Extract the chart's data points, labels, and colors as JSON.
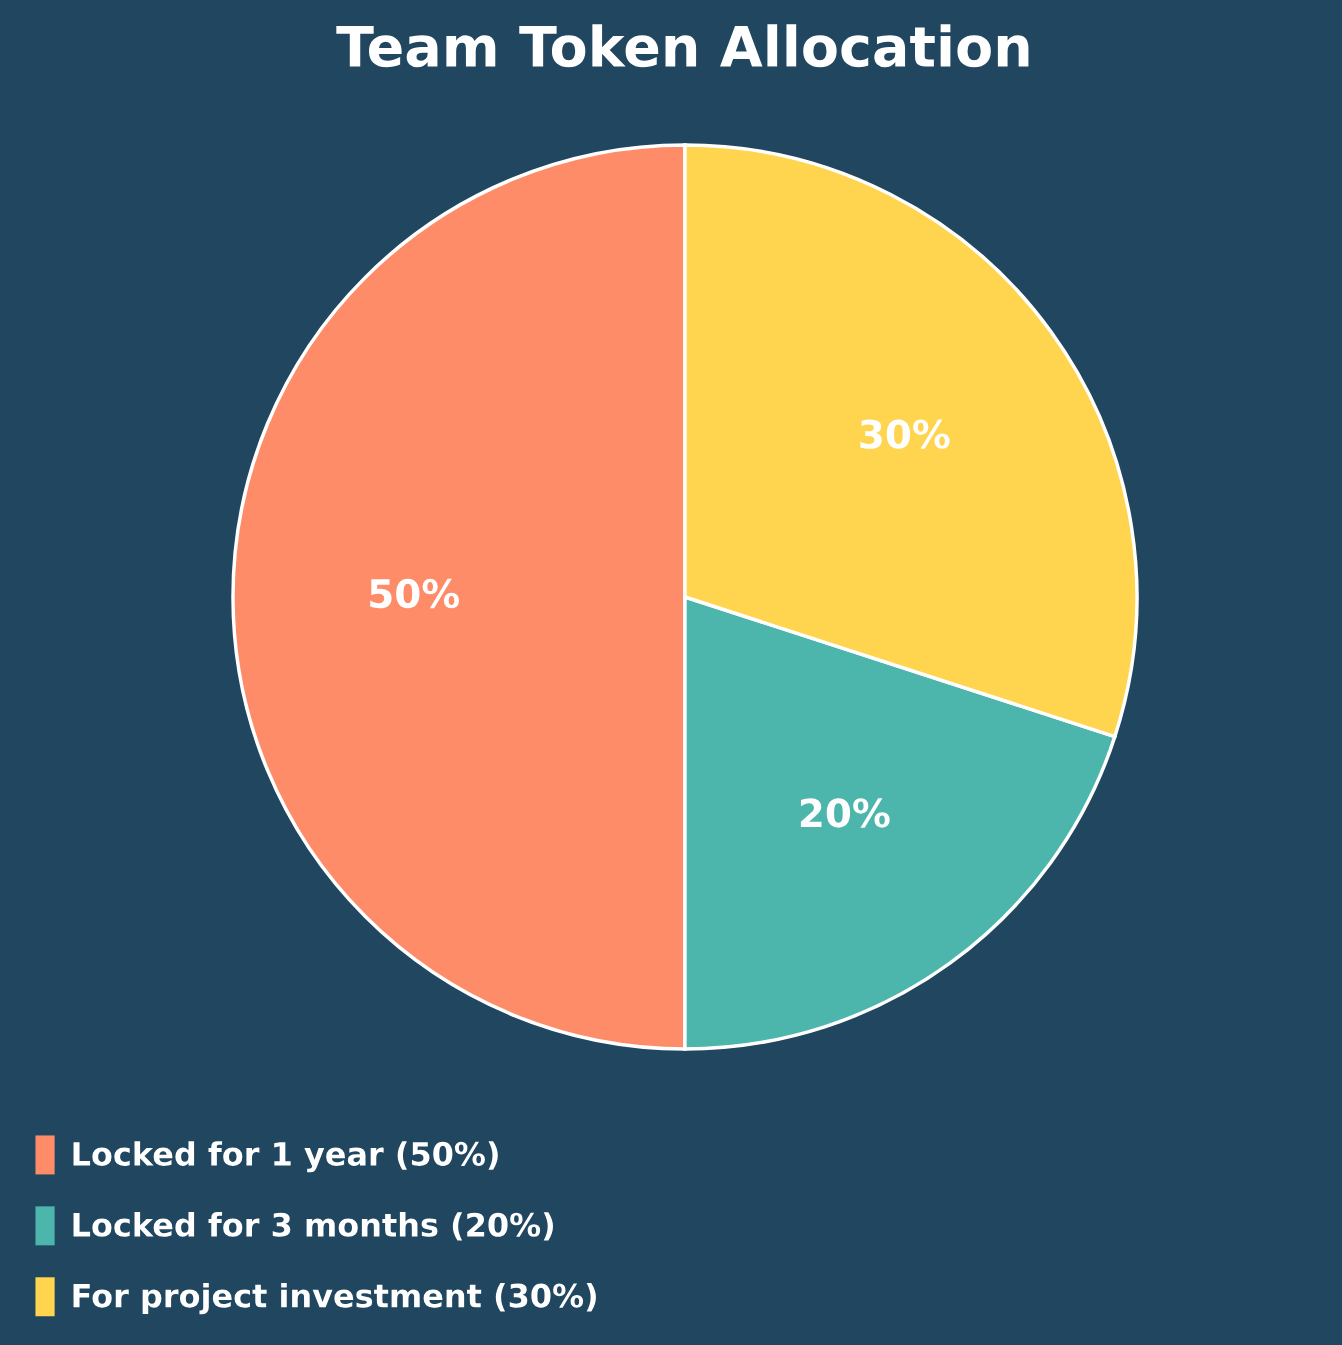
{
  "chart_data": {
    "type": "pie",
    "title": "Team Token Allocation",
    "categories": [
      "Locked for 1 year (50%)",
      "Locked for 3 months (20%)",
      "For project investment (30%)"
    ],
    "values": [
      50,
      20,
      30
    ],
    "colors": [
      "#ff8c69",
      "#4db6ac",
      "#ffd54f"
    ],
    "value_labels": [
      "50%",
      "20%",
      "30%"
    ],
    "legend": "bottom left"
  }
}
